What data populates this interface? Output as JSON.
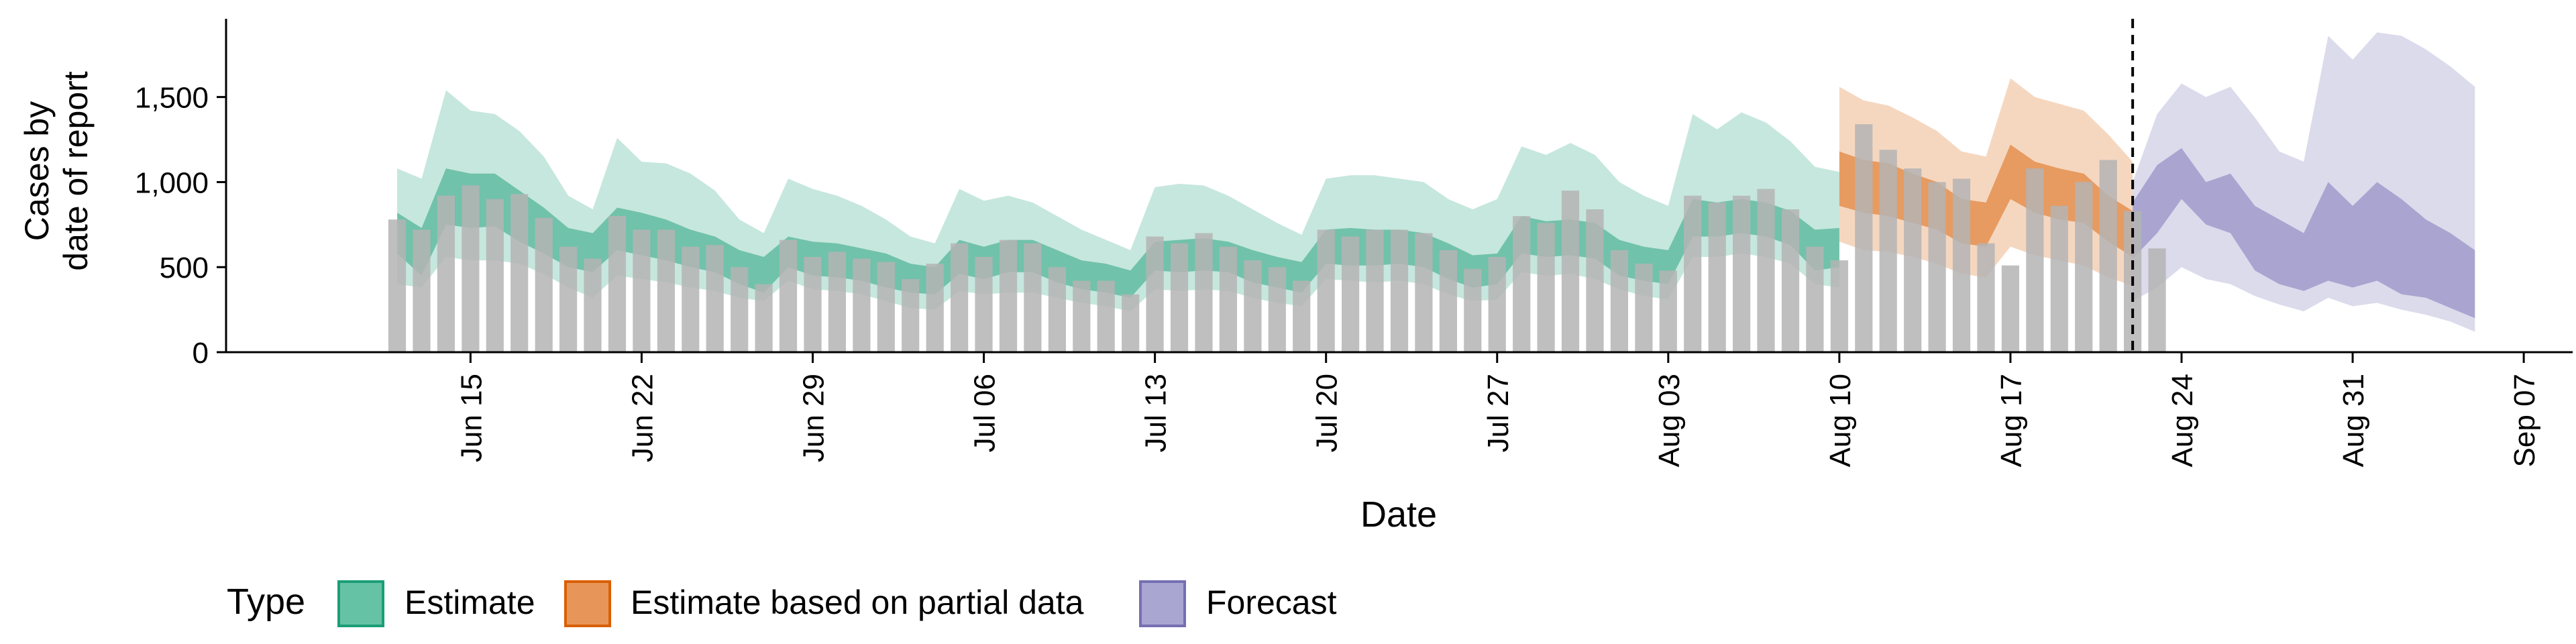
{
  "chart_data": {
    "type": "area",
    "xlabel": "Date",
    "ylabel_line1": "Cases by",
    "ylabel_line2": "date of report",
    "x_range": [
      "2020-06-05",
      "2020-09-09"
    ],
    "ylim": [
      0,
      1960
    ],
    "grid": false,
    "forecast_start_marker": "2020-08-22",
    "x_ticks": [
      {
        "date": "2020-06-15",
        "label": "Jun 15"
      },
      {
        "date": "2020-06-22",
        "label": "Jun 22"
      },
      {
        "date": "2020-06-29",
        "label": "Jun 29"
      },
      {
        "date": "2020-07-06",
        "label": "Jul 06"
      },
      {
        "date": "2020-07-13",
        "label": "Jul 13"
      },
      {
        "date": "2020-07-20",
        "label": "Jul 20"
      },
      {
        "date": "2020-07-27",
        "label": "Jul 27"
      },
      {
        "date": "2020-08-03",
        "label": "Aug 03"
      },
      {
        "date": "2020-08-10",
        "label": "Aug 10"
      },
      {
        "date": "2020-08-17",
        "label": "Aug 17"
      },
      {
        "date": "2020-08-24",
        "label": "Aug 24"
      },
      {
        "date": "2020-08-31",
        "label": "Aug 31"
      },
      {
        "date": "2020-09-07",
        "label": "Sep 07"
      }
    ],
    "y_ticks": [
      {
        "value": 0,
        "label": "0"
      },
      {
        "value": 500,
        "label": "500"
      },
      {
        "value": 1000,
        "label": "1,000"
      },
      {
        "value": 1500,
        "label": "1,500"
      }
    ],
    "legend": {
      "position": "bottom",
      "title": "Type",
      "items": [
        {
          "label": "Estimate",
          "fill": "#66c2a5",
          "stroke": "#1b9e77"
        },
        {
          "label": "Estimate based on partial data",
          "fill": "#e8955a",
          "stroke": "#d95f02"
        },
        {
          "label": "Forecast",
          "fill": "#aaa6d2",
          "stroke": "#7570b3"
        }
      ]
    },
    "colors": {
      "bars": "#b4b4b4",
      "Estimate": "#1b9e77",
      "Estimate based on partial data": "#d95f02",
      "Forecast": "#7570b3"
    },
    "observed_cases": {
      "start_date": "2020-06-12",
      "values": [
        780,
        720,
        920,
        980,
        900,
        930,
        790,
        620,
        550,
        800,
        720,
        720,
        620,
        630,
        500,
        400,
        660,
        560,
        590,
        550,
        530,
        430,
        520,
        640,
        560,
        660,
        640,
        500,
        420,
        420,
        340,
        680,
        640,
        700,
        620,
        540,
        500,
        420,
        720,
        680,
        720,
        720,
        700,
        600,
        490,
        560,
        800,
        760,
        950,
        840,
        600,
        520,
        480,
        920,
        880,
        920,
        960,
        840,
        620,
        540,
        1340,
        1190,
        1080,
        1000,
        1020,
        640,
        510,
        1080,
        860,
        1000,
        1130,
        830,
        610
      ]
    },
    "series": [
      {
        "name": "Estimate",
        "start_date": "2020-06-12",
        "median": [
          700,
          590,
          900,
          870,
          870,
          780,
          700,
          610,
          580,
          720,
          690,
          650,
          600,
          570,
          500,
          450,
          580,
          550,
          540,
          520,
          490,
          440,
          430,
          560,
          520,
          560,
          560,
          500,
          450,
          440,
          410,
          550,
          560,
          570,
          560,
          510,
          480,
          450,
          610,
          620,
          600,
          620,
          600,
          540,
          480,
          500,
          680,
          660,
          670,
          650,
          560,
          520,
          500,
          770,
          760,
          780,
          760,
          720,
          570,
          590
        ],
        "lower50": [
          580,
          450,
          750,
          730,
          740,
          650,
          580,
          500,
          470,
          600,
          570,
          540,
          500,
          470,
          400,
          350,
          500,
          450,
          440,
          420,
          380,
          350,
          340,
          460,
          430,
          470,
          470,
          410,
          370,
          350,
          320,
          480,
          470,
          480,
          470,
          410,
          380,
          350,
          520,
          510,
          510,
          520,
          500,
          430,
          380,
          400,
          580,
          560,
          570,
          550,
          450,
          420,
          400,
          680,
          680,
          700,
          680,
          630,
          480,
          500
        ],
        "upper50": [
          820,
          730,
          1080,
          1050,
          1050,
          950,
          850,
          730,
          700,
          850,
          820,
          780,
          720,
          680,
          600,
          560,
          680,
          650,
          640,
          610,
          580,
          520,
          500,
          660,
          620,
          660,
          660,
          600,
          540,
          520,
          480,
          650,
          660,
          670,
          650,
          600,
          560,
          530,
          720,
          730,
          720,
          720,
          700,
          640,
          570,
          580,
          800,
          770,
          780,
          760,
          660,
          620,
          600,
          900,
          880,
          900,
          880,
          830,
          720,
          730
        ],
        "lower90": [
          400,
          380,
          560,
          540,
          540,
          520,
          460,
          380,
          320,
          450,
          430,
          410,
          380,
          360,
          320,
          300,
          420,
          370,
          360,
          340,
          300,
          260,
          250,
          360,
          340,
          350,
          350,
          320,
          290,
          270,
          240,
          370,
          360,
          370,
          360,
          320,
          290,
          270,
          430,
          420,
          410,
          420,
          400,
          340,
          300,
          310,
          470,
          450,
          460,
          430,
          370,
          330,
          310,
          560,
          560,
          580,
          560,
          520,
          400,
          380
        ],
        "upper90": [
          1080,
          1020,
          1540,
          1420,
          1400,
          1300,
          1150,
          920,
          840,
          1260,
          1120,
          1110,
          1050,
          950,
          780,
          700,
          1020,
          960,
          920,
          860,
          780,
          680,
          640,
          960,
          890,
          920,
          880,
          800,
          720,
          660,
          600,
          970,
          990,
          980,
          920,
          840,
          760,
          690,
          1020,
          1040,
          1040,
          1020,
          1000,
          900,
          840,
          900,
          1210,
          1160,
          1230,
          1160,
          1000,
          920,
          860,
          1400,
          1310,
          1410,
          1350,
          1240,
          1090,
          1060
        ]
      },
      {
        "name": "Estimate based on partial data",
        "start_date": "2020-08-10",
        "median": [
          1000,
          980,
          950,
          900,
          860,
          780,
          750,
          1050,
          960,
          920,
          900,
          780,
          700
        ],
        "lower50": [
          860,
          820,
          800,
          760,
          720,
          640,
          620,
          900,
          820,
          780,
          760,
          650,
          560
        ],
        "upper50": [
          1180,
          1130,
          1110,
          1050,
          1000,
          900,
          880,
          1220,
          1120,
          1080,
          1050,
          920,
          830
        ],
        "lower90": [
          650,
          600,
          590,
          560,
          520,
          460,
          440,
          620,
          570,
          540,
          510,
          440,
          390
        ],
        "upper90": [
          1560,
          1480,
          1450,
          1380,
          1300,
          1180,
          1150,
          1610,
          1500,
          1460,
          1420,
          1280,
          1120
        ]
      },
      {
        "name": "Forecast",
        "start_date": "2020-08-22",
        "median": [
          740,
          820,
          1000,
          900,
          860,
          640,
          560,
          520,
          640,
          580,
          560,
          480,
          420,
          360,
          300
        ],
        "lower50": [
          550,
          700,
          900,
          750,
          700,
          480,
          400,
          360,
          420,
          380,
          420,
          340,
          320,
          260,
          200
        ],
        "upper50": [
          880,
          1100,
          1200,
          1000,
          1050,
          860,
          780,
          700,
          1000,
          860,
          1000,
          900,
          780,
          700,
          600
        ],
        "lower90": [
          300,
          380,
          500,
          430,
          400,
          330,
          280,
          240,
          320,
          270,
          290,
          250,
          220,
          180,
          120
        ],
        "upper90": [
          1000,
          1400,
          1580,
          1500,
          1560,
          1380,
          1180,
          1120,
          1860,
          1720,
          1880,
          1860,
          1780,
          1680,
          1560
        ]
      }
    ]
  }
}
